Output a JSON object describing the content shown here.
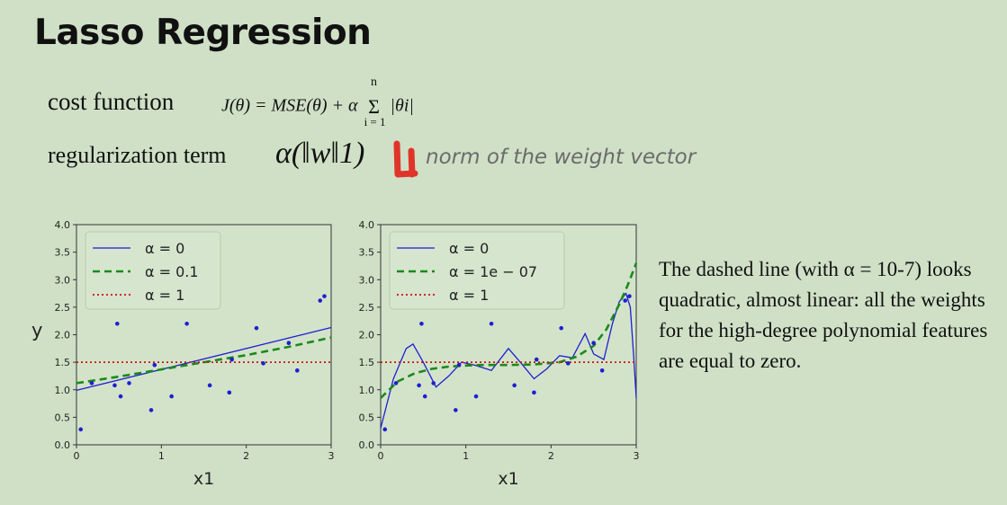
{
  "title": "Lasso Regression",
  "cost_label": "cost function",
  "cost_formula": {
    "lhs": "J(θ) = MSE(θ) + α",
    "sum_top": "n",
    "sum_bottom": "i = 1",
    "term": "|θi|"
  },
  "reg_label": "regularization term",
  "reg_formula": "α(‖w‖1)",
  "handwritten_note": "norm of the weight vector",
  "handwritten_mark": "L1",
  "side_text": "The dashed line (with α = 10-7) looks quadratic, almost linear: all the weights for the high-degree polynomial features are equal to zero.",
  "colors": {
    "background": "#cfe0c6",
    "blue": "#1f1fd0",
    "green": "#1a8a1a",
    "red": "#d01010",
    "mark": "#e0342b"
  },
  "chart_data": [
    {
      "type": "line",
      "ylabel": "y",
      "xlabel": "x1",
      "xlim": [
        0,
        3
      ],
      "ylim": [
        0,
        4
      ],
      "xticks": [
        "0",
        "1",
        "2",
        "3"
      ],
      "yticks": [
        "0.0",
        "0.5",
        "1.0",
        "1.5",
        "2.0",
        "2.5",
        "3.0",
        "3.5",
        "4.0"
      ],
      "legend": [
        "α = 0",
        "α = 0.1",
        "α = 1"
      ],
      "series": [
        {
          "name": "α = 0",
          "style": "solid",
          "x": [
            0,
            3
          ],
          "y": [
            0.99,
            2.13
          ]
        },
        {
          "name": "α = 0.1",
          "style": "dashed",
          "x": [
            0,
            0.5,
            1,
            1.5,
            2,
            2.5,
            3
          ],
          "y": [
            1.12,
            1.24,
            1.37,
            1.5,
            1.63,
            1.78,
            1.95
          ]
        },
        {
          "name": "α = 1",
          "style": "dotted",
          "x": [
            0,
            3
          ],
          "y": [
            1.5,
            1.5
          ]
        }
      ],
      "points": {
        "x": [
          0.05,
          0.18,
          0.45,
          0.48,
          0.52,
          0.62,
          0.88,
          0.92,
          1.12,
          1.3,
          1.57,
          1.8,
          1.83,
          2.12,
          2.2,
          2.5,
          2.6,
          2.87,
          2.92
        ],
        "y": [
          0.28,
          1.12,
          1.08,
          2.2,
          0.88,
          1.12,
          0.63,
          1.45,
          0.88,
          2.2,
          1.08,
          0.95,
          1.55,
          2.12,
          1.48,
          1.85,
          1.35,
          2.62,
          2.7
        ]
      }
    },
    {
      "type": "line",
      "ylabel": "",
      "xlabel": "x1",
      "xlim": [
        0,
        3
      ],
      "ylim": [
        0,
        4
      ],
      "xticks": [
        "0",
        "1",
        "2",
        "3"
      ],
      "yticks": [
        "0.0",
        "0.5",
        "1.0",
        "1.5",
        "2.0",
        "2.5",
        "3.0",
        "3.5",
        "4.0"
      ],
      "legend": [
        "α = 0",
        "α = 1e − 07",
        "α = 1"
      ],
      "series": [
        {
          "name": "α = 0",
          "style": "solid",
          "x": [
            0,
            0.15,
            0.3,
            0.38,
            0.5,
            0.65,
            0.8,
            0.95,
            1.1,
            1.3,
            1.5,
            1.65,
            1.8,
            1.95,
            2.1,
            2.25,
            2.4,
            2.5,
            2.62,
            2.72,
            2.8,
            2.88,
            2.93,
            2.97,
            3.0
          ],
          "y": [
            0.3,
            1.2,
            1.75,
            1.83,
            1.5,
            1.05,
            1.25,
            1.5,
            1.45,
            1.35,
            1.75,
            1.48,
            1.2,
            1.38,
            1.62,
            1.58,
            2.02,
            1.65,
            1.55,
            2.2,
            2.6,
            2.75,
            2.5,
            1.6,
            0.85
          ]
        },
        {
          "name": "α = 1e − 07",
          "style": "dashed",
          "x": [
            0,
            0.2,
            0.4,
            0.6,
            0.8,
            1.0,
            1.2,
            1.5,
            1.8,
            2.1,
            2.3,
            2.5,
            2.65,
            2.8,
            2.9,
            3.0
          ],
          "y": [
            0.85,
            1.15,
            1.3,
            1.38,
            1.42,
            1.44,
            1.45,
            1.45,
            1.46,
            1.5,
            1.6,
            1.8,
            2.1,
            2.55,
            2.9,
            3.3
          ]
        },
        {
          "name": "α = 1",
          "style": "dotted",
          "x": [
            0,
            3
          ],
          "y": [
            1.5,
            1.5
          ]
        }
      ],
      "points": {
        "x": [
          0.05,
          0.18,
          0.45,
          0.48,
          0.52,
          0.62,
          0.88,
          0.92,
          1.12,
          1.3,
          1.57,
          1.8,
          1.83,
          2.12,
          2.2,
          2.5,
          2.6,
          2.87,
          2.92
        ],
        "y": [
          0.28,
          1.12,
          1.08,
          2.2,
          0.88,
          1.12,
          0.63,
          1.45,
          0.88,
          2.2,
          1.08,
          0.95,
          1.55,
          2.12,
          1.48,
          1.85,
          1.35,
          2.62,
          2.7
        ]
      }
    }
  ]
}
